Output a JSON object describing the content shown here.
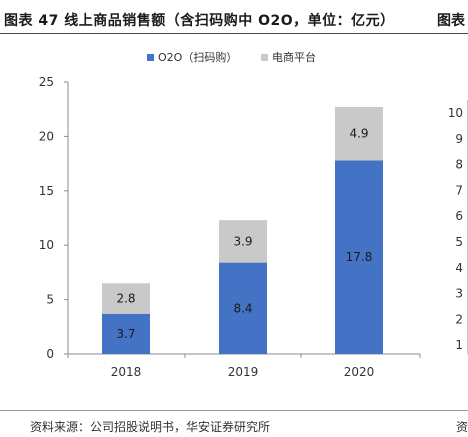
{
  "page": {
    "title": "图表 47 线上商品销售额（含扫码购中 O2O，单位：亿元）",
    "next_title_fragment": "图表",
    "source": "资料来源：公司招股说明书，华安证券研究所",
    "source_next_fragment": "资"
  },
  "right_chart_fragment": {
    "ticks": [
      "10",
      "9",
      "8",
      "7",
      "6",
      "5",
      "4",
      "3",
      "2",
      "1"
    ]
  },
  "chart_data": {
    "type": "bar",
    "stacked": true,
    "categories": [
      "2018",
      "2019",
      "2020"
    ],
    "series": [
      {
        "name": "O2O（扫码购）",
        "values": [
          3.7,
          8.4,
          17.8
        ],
        "color": "#4472C4"
      },
      {
        "name": "电商平台",
        "values": [
          2.8,
          3.9,
          4.9
        ],
        "color": "#C9C9C9"
      }
    ],
    "ylim": [
      0,
      25
    ],
    "yticks": [
      0,
      5,
      10,
      15,
      20,
      25
    ],
    "legend_position": "top",
    "grid": false
  }
}
